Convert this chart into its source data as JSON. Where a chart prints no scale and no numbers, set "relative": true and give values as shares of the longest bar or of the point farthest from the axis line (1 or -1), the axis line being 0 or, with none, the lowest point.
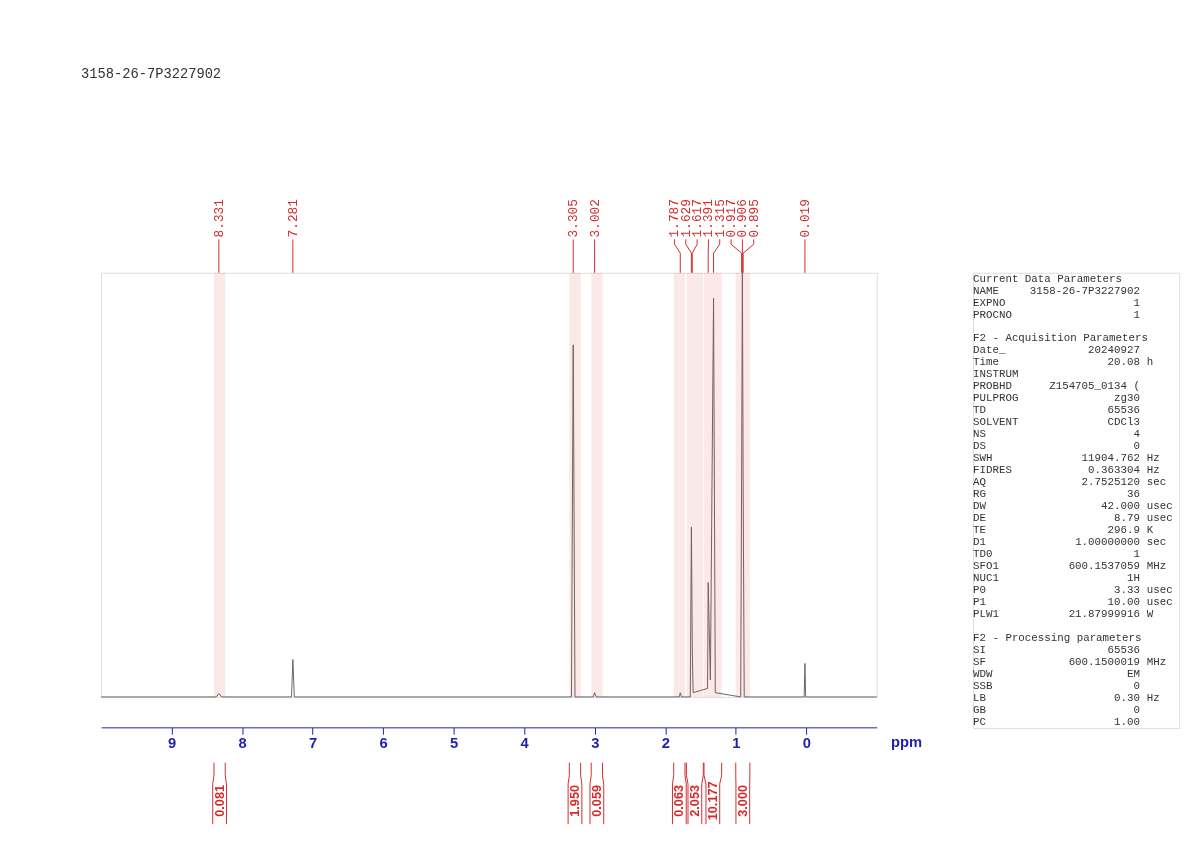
{
  "chart_data": [
    {
      "type": "line",
      "title": "3158-26-7P3227902",
      "xlabel": "ppm",
      "relative": true,
      "xlim": [
        10,
        -1
      ],
      "xticks": [
        9,
        8,
        7,
        6,
        5,
        4,
        3,
        2,
        1,
        0
      ],
      "grid": false,
      "marker": "none",
      "line_style": "solid",
      "x": [
        10.0,
        8.37,
        8.331,
        8.29,
        7.3,
        7.281,
        7.26,
        3.33,
        3.305,
        3.28,
        3.02,
        3.002,
        2.98,
        1.8,
        1.787,
        1.77,
        1.645,
        1.629,
        1.617,
        1.605,
        1.4,
        1.391,
        1.36,
        1.315,
        1.29,
        0.93,
        0.917,
        0.906,
        0.895,
        0.88,
        0.03,
        0.019,
        0.008,
        -1.0
      ],
      "series": [
        {
          "color": "#666666",
          "values": [
            0,
            0,
            0.008,
            0,
            0,
            0.088,
            0,
            0,
            0.83,
            0,
            0,
            0.01,
            0,
            0,
            0.01,
            0,
            0,
            0.4,
            0.12,
            0.01,
            0.02,
            0.27,
            0.04,
            0.94,
            0.01,
            0,
            0.52,
            1.0,
            0.5,
            0,
            0,
            0.079,
            0,
            0
          ]
        }
      ],
      "ref_lines": [
        {
          "axis": "x",
          "value": 8.331,
          "label": "8.331",
          "color": "#d42a2a"
        },
        {
          "axis": "x",
          "value": 7.281,
          "label": "7.281",
          "color": "#d42a2a"
        },
        {
          "axis": "x",
          "value": 3.305,
          "label": "3.305",
          "color": "#d42a2a"
        },
        {
          "axis": "x",
          "value": 3.002,
          "label": "3.002",
          "color": "#d42a2a"
        },
        {
          "axis": "x",
          "value": 1.787,
          "label": "1.787",
          "color": "#d42a2a"
        },
        {
          "axis": "x",
          "value": 1.629,
          "label": "1.629",
          "color": "#d42a2a"
        },
        {
          "axis": "x",
          "value": 1.617,
          "label": "1.617",
          "color": "#d42a2a"
        },
        {
          "axis": "x",
          "value": 1.391,
          "label": "1.391",
          "color": "#d42a2a"
        },
        {
          "axis": "x",
          "value": 1.315,
          "label": "1.315",
          "color": "#d42a2a"
        },
        {
          "axis": "x",
          "value": 0.917,
          "label": "0.917",
          "color": "#d42a2a"
        },
        {
          "axis": "x",
          "value": 0.906,
          "label": "0.906",
          "color": "#d42a2a"
        },
        {
          "axis": "x",
          "value": 0.895,
          "label": "0.895",
          "color": "#d42a2a"
        },
        {
          "axis": "x",
          "value": 0.019,
          "label": "0.019",
          "color": "#d42a2a"
        }
      ],
      "bands": [
        {
          "axis": "x",
          "from": 8.4,
          "to": 8.24,
          "label": "0.081",
          "color": "#d42a2a"
        },
        {
          "axis": "x",
          "from": 3.36,
          "to": 3.2,
          "label": "1.950",
          "color": "#d42a2a"
        },
        {
          "axis": "x",
          "from": 3.05,
          "to": 2.89,
          "label": "0.059",
          "color": "#d42a2a"
        },
        {
          "axis": "x",
          "from": 1.88,
          "to": 1.72,
          "label": "0.063",
          "color": "#d42a2a"
        },
        {
          "axis": "x",
          "from": 1.7,
          "to": 1.46,
          "label": "2.053",
          "color": "#d42a2a"
        },
        {
          "axis": "x",
          "from": 1.45,
          "to": 1.2,
          "label": "10.177",
          "color": "#d42a2a"
        },
        {
          "axis": "x",
          "from": 1.0,
          "to": 0.8,
          "label": "3.000",
          "color": "#d42a2a"
        }
      ]
    },
    {
      "type": "other",
      "annotations": [
        "Current Data Parameters",
        "NAME  3158-26-7P3227902",
        "EXPNO  1",
        "PROCNO  1",
        "F2 - Acquisition Parameters",
        "Date_  20240927",
        "Time  20.08  h",
        "INSTRUM",
        "PROBHD  Z154705_0134 (",
        "PULPROG  zg30",
        "TD  65536",
        "SOLVENT  CDCl3",
        "NS  4",
        "DS  0",
        "SWH  11904.762  Hz",
        "FIDRES  0.363304  Hz",
        "AQ  2.7525120  sec",
        "RG  36",
        "DW  42.000  usec",
        "DE  8.79  usec",
        "TE  296.9  K",
        "D1  1.00000000  sec",
        "TD0  1",
        "SFO1  600.1537059  MHz",
        "NUC1  1H",
        "P0  3.33  usec",
        "P1  10.00  usec",
        "PLW1  21.87999916  W",
        "F2 - Processing parameters",
        "SI  65536",
        "SF  600.1500019  MHz",
        "WDW  EM",
        "SSB  0",
        "LB  0.30  Hz",
        "GB  0",
        "PC  1.00"
      ]
    }
  ]
}
